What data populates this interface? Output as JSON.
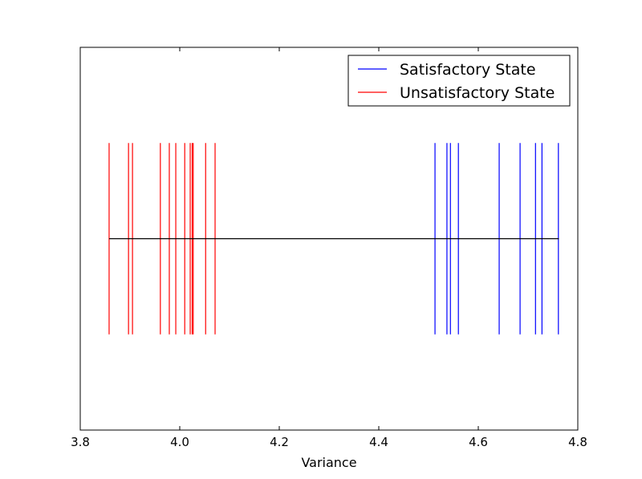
{
  "chart_data": {
    "type": "eventplot",
    "xlabel": "Variance",
    "xlim": [
      3.8,
      4.8
    ],
    "ylim": [
      -1,
      1
    ],
    "x_ticks": [
      "3.8",
      "4.0",
      "4.2",
      "4.4",
      "4.6",
      "4.8"
    ],
    "x_tick_values": [
      3.8,
      4.0,
      4.2,
      4.4,
      4.6,
      4.8
    ],
    "show_y_ticks": false,
    "grid": false,
    "legend_position": "top-right",
    "baseline": {
      "from": 3.858,
      "to": 4.762,
      "y": 0,
      "color": "#000000"
    },
    "series": [
      {
        "name": "Satisfactory State",
        "color": "#0000ff",
        "values": [
          4.513,
          4.537,
          4.544,
          4.56,
          4.642,
          4.684,
          4.715,
          4.728,
          4.761
        ]
      },
      {
        "name": "Unsatisfactory State",
        "color": "#ff0000",
        "values": [
          3.858,
          3.897,
          3.905,
          3.961,
          3.979,
          3.992,
          4.01,
          4.021,
          4.025,
          4.027,
          4.052,
          4.071
        ]
      }
    ],
    "event_extent": [
      -0.5,
      0.5
    ]
  }
}
